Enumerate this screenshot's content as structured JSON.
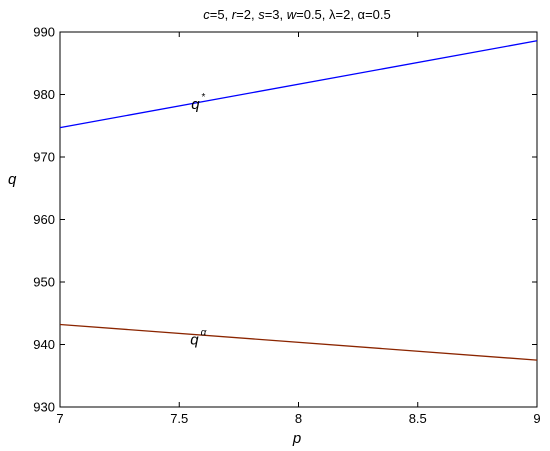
{
  "chart_data": {
    "type": "line",
    "title": "c=5, r=2, s=3, w=0.5, λ=2, α=0.5",
    "title_parts": [
      {
        "text": "c",
        "italic": true
      },
      {
        "text": "=5, ",
        "italic": false
      },
      {
        "text": "r",
        "italic": true
      },
      {
        "text": "=2, ",
        "italic": false
      },
      {
        "text": "s",
        "italic": true
      },
      {
        "text": "=3, ",
        "italic": false
      },
      {
        "text": "w",
        "italic": true
      },
      {
        "text": "=0.5, λ=2, α=0.5",
        "italic": false
      }
    ],
    "xlabel": "p",
    "ylabel": "q",
    "xlim": [
      7,
      9
    ],
    "ylim": [
      930,
      990
    ],
    "xticks": [
      7,
      7.5,
      8,
      8.5,
      9
    ],
    "xtick_labels": [
      "7",
      "7.5",
      "8",
      "8.5",
      "9"
    ],
    "yticks": [
      930,
      940,
      950,
      960,
      970,
      980,
      990
    ],
    "ytick_labels": [
      "930",
      "940",
      "950",
      "960",
      "970",
      "980",
      "990"
    ],
    "grid": false,
    "series": [
      {
        "name": "q*",
        "color": "#0000ff",
        "x": [
          7,
          9
        ],
        "y": [
          974.7,
          988.6
        ]
      },
      {
        "name": "qα",
        "color": "#8b2500",
        "x": [
          7,
          9
        ],
        "y": [
          943.2,
          937.5
        ]
      }
    ],
    "annotations": [
      {
        "base": "q",
        "sup": "*",
        "x": 7.58,
        "y": 978.5
      },
      {
        "base": "q",
        "sup": "α",
        "x": 7.58,
        "y": 940.8
      }
    ]
  }
}
